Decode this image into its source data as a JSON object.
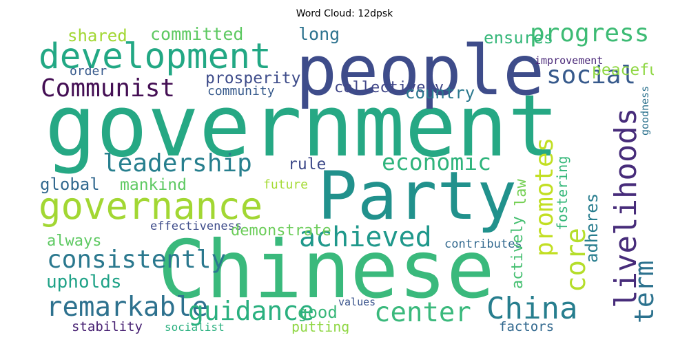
{
  "title": "Word Cloud: 12dpsk",
  "words": [
    {
      "text": "government",
      "color": "#26a884"
    },
    {
      "text": "Chinese",
      "color": "#3ab97c"
    },
    {
      "text": "people",
      "color": "#3e4c8a"
    },
    {
      "text": "Party",
      "color": "#21918c"
    },
    {
      "text": "development",
      "color": "#22a884"
    },
    {
      "text": "governance",
      "color": "#a2d733"
    },
    {
      "text": "Communist",
      "color": "#440f54"
    },
    {
      "text": "progress",
      "color": "#3dbb74"
    },
    {
      "text": "social",
      "color": "#375a8c"
    },
    {
      "text": "leadership",
      "color": "#277f8e"
    },
    {
      "text": "economic",
      "color": "#2fb47c"
    },
    {
      "text": "achieved",
      "color": "#1f988b"
    },
    {
      "text": "consistently",
      "color": "#2a788e"
    },
    {
      "text": "remarkable",
      "color": "#2d718e"
    },
    {
      "text": "guidance",
      "color": "#2ab07f"
    },
    {
      "text": "center",
      "color": "#3ab97c"
    },
    {
      "text": "China",
      "color": "#277e8e"
    },
    {
      "text": "upholds",
      "color": "#1fa287"
    },
    {
      "text": "always",
      "color": "#5ec962"
    },
    {
      "text": "good",
      "color": "#38b779"
    },
    {
      "text": "putting",
      "color": "#8fd744"
    },
    {
      "text": "stability",
      "color": "#482273"
    },
    {
      "text": "socialist",
      "color": "#2ab07f"
    },
    {
      "text": "values",
      "color": "#3a548c"
    },
    {
      "text": "factors",
      "color": "#31688e"
    },
    {
      "text": "contributes",
      "color": "#31688e"
    },
    {
      "text": "effectiveness",
      "color": "#3e4c8a"
    },
    {
      "text": "demonstrate",
      "color": "#6ccd5a"
    },
    {
      "text": "future",
      "color": "#a5db36"
    },
    {
      "text": "mankind",
      "color": "#5ec962"
    },
    {
      "text": "global",
      "color": "#31688e"
    },
    {
      "text": "rule",
      "color": "#3e4a89"
    },
    {
      "text": "shared",
      "color": "#a2d733"
    },
    {
      "text": "committed",
      "color": "#5ec962"
    },
    {
      "text": "long",
      "color": "#2c728e"
    },
    {
      "text": "ensures",
      "color": "#35b779"
    },
    {
      "text": "peaceful",
      "color": "#8fd744"
    },
    {
      "text": "prosperity",
      "color": "#3e4c8a"
    },
    {
      "text": "collectively",
      "color": "#404688"
    },
    {
      "text": "country",
      "color": "#2a788e"
    },
    {
      "text": "community",
      "color": "#375a8c"
    },
    {
      "text": "order",
      "color": "#375a8c"
    },
    {
      "text": "improvement",
      "color": "#482677"
    },
    {
      "text": "livelihoods",
      "color": "#472c7a"
    },
    {
      "text": "term",
      "color": "#2c728e"
    },
    {
      "text": "core",
      "color": "#b5de2b"
    },
    {
      "text": "promotes",
      "color": "#c2df23"
    },
    {
      "text": "law",
      "color": "#75d054"
    },
    {
      "text": "adheres",
      "color": "#287d8e"
    },
    {
      "text": "fostering",
      "color": "#35b779"
    },
    {
      "text": "actively",
      "color": "#44bf70"
    },
    {
      "text": "goodness",
      "color": "#2c728e"
    }
  ]
}
